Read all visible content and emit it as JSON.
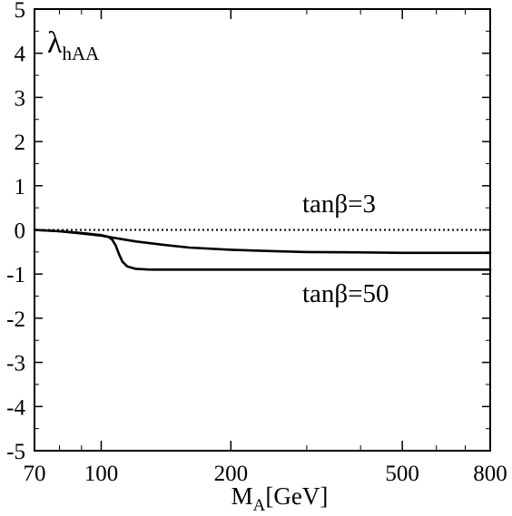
{
  "chart_data": {
    "type": "line",
    "title": "",
    "panel_label": {
      "base": "λ",
      "sub": "hAA"
    },
    "xlabel": {
      "base": "M",
      "sub": "A",
      "unit": "[GeV]"
    },
    "ylabel": "",
    "x_scale": "log",
    "xlim": [
      70,
      800
    ],
    "ylim": [
      -5,
      5
    ],
    "x_ticks": [
      70,
      100,
      200,
      500,
      800
    ],
    "x_tick_labels": [
      "70",
      "100",
      "200",
      "500",
      "800"
    ],
    "y_ticks": [
      5,
      4,
      3,
      2,
      1,
      0,
      -1,
      -2,
      -3,
      -4,
      -5
    ],
    "y_tick_labels": [
      "5",
      "4",
      "3",
      "2",
      "1",
      "0",
      "-1",
      "-2",
      "-3",
      "-4",
      "-5"
    ],
    "reference_line": {
      "y": 0,
      "style": "dotted"
    },
    "series": [
      {
        "name": "tanβ=3",
        "x": [
          70,
          80,
          90,
          100,
          110,
          120,
          140,
          160,
          200,
          250,
          300,
          400,
          500,
          650,
          800
        ],
        "y": [
          0,
          -0.03,
          -0.08,
          -0.13,
          -0.2,
          -0.26,
          -0.34,
          -0.4,
          -0.45,
          -0.48,
          -0.5,
          -0.51,
          -0.52,
          -0.52,
          -0.52
        ]
      },
      {
        "name": "tanβ=50",
        "x": [
          70,
          80,
          90,
          100,
          104,
          106,
          108,
          110,
          112,
          115,
          120,
          130,
          150,
          200,
          300,
          500,
          800
        ],
        "y": [
          0,
          -0.03,
          -0.07,
          -0.12,
          -0.16,
          -0.22,
          -0.35,
          -0.55,
          -0.72,
          -0.83,
          -0.88,
          -0.9,
          -0.9,
          -0.9,
          -0.9,
          -0.9,
          -0.9
        ]
      }
    ],
    "series_labels": [
      {
        "text": "tanβ=3",
        "placement": "above curve, right"
      },
      {
        "text": "tanβ=50",
        "placement": "below curve, right"
      }
    ]
  }
}
